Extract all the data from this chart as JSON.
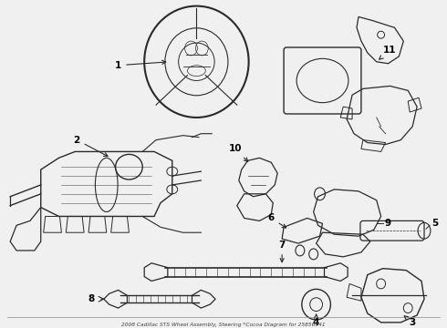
{
  "title": "2008 Cadillac STS Wheel Assembly, Steering *Cocoa Diagram for 25856941",
  "background_color": "#f0f0f0",
  "line_color": "#2a2a2a",
  "label_color": "#000000",
  "fig_width": 4.9,
  "fig_height": 3.6,
  "dpi": 100,
  "border_color": "#999999",
  "text_color": "#444444"
}
